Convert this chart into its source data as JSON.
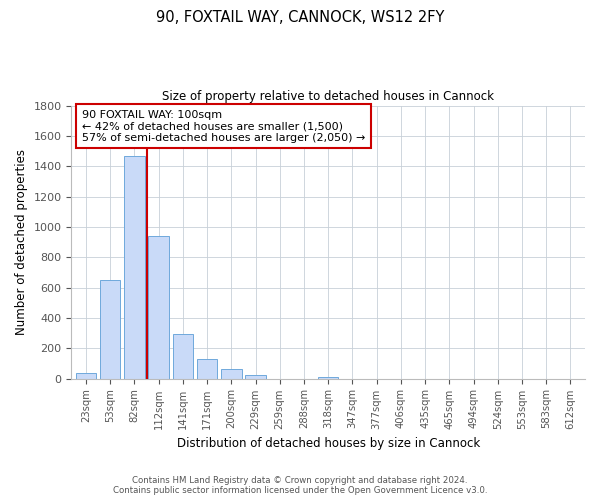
{
  "title": "90, FOXTAIL WAY, CANNOCK, WS12 2FY",
  "subtitle": "Size of property relative to detached houses in Cannock",
  "xlabel": "Distribution of detached houses by size in Cannock",
  "ylabel": "Number of detached properties",
  "bar_labels": [
    "23sqm",
    "53sqm",
    "82sqm",
    "112sqm",
    "141sqm",
    "171sqm",
    "200sqm",
    "229sqm",
    "259sqm",
    "288sqm",
    "318sqm",
    "347sqm",
    "377sqm",
    "406sqm",
    "435sqm",
    "465sqm",
    "494sqm",
    "524sqm",
    "553sqm",
    "583sqm",
    "612sqm"
  ],
  "bar_values": [
    40,
    650,
    1470,
    940,
    295,
    130,
    65,
    22,
    0,
    0,
    12,
    0,
    0,
    0,
    0,
    0,
    0,
    0,
    0,
    0,
    0
  ],
  "bar_color": "#c9daf8",
  "bar_edge_color": "#6fa8dc",
  "vline_color": "#cc0000",
  "annotation_text": "90 FOXTAIL WAY: 100sqm\n← 42% of detached houses are smaller (1,500)\n57% of semi-detached houses are larger (2,050) →",
  "annotation_box_edge": "#cc0000",
  "ylim": [
    0,
    1800
  ],
  "yticks": [
    0,
    200,
    400,
    600,
    800,
    1000,
    1200,
    1400,
    1600,
    1800
  ],
  "footer_line1": "Contains HM Land Registry data © Crown copyright and database right 2024.",
  "footer_line2": "Contains public sector information licensed under the Open Government Licence v3.0.",
  "background_color": "#ffffff",
  "grid_color": "#c8d0d8"
}
